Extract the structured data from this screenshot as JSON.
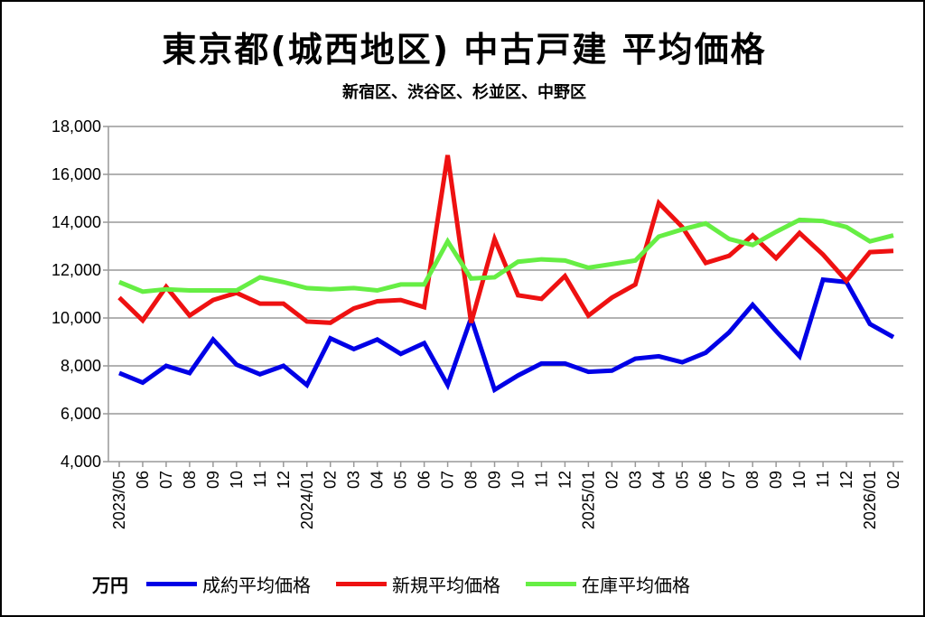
{
  "chart_data": {
    "type": "line",
    "title": "東京都(城西地区) 中古戸建 平均価格",
    "subtitle": "新宿区、渋谷区、杉並区、中野区",
    "ylabel": "万円",
    "ylim": [
      4000,
      18000
    ],
    "yticks": [
      "4,000",
      "6,000",
      "8,000",
      "10,000",
      "12,000",
      "14,000",
      "16,000",
      "18,000"
    ],
    "ytick_values": [
      4000,
      6000,
      8000,
      10000,
      12000,
      14000,
      16000,
      18000
    ],
    "grid": true,
    "legend_position": "bottom",
    "categories": [
      "2023/05",
      "06",
      "07",
      "08",
      "09",
      "10",
      "11",
      "12",
      "2024/01",
      "02",
      "03",
      "04",
      "05",
      "06",
      "07",
      "08",
      "09",
      "10",
      "11",
      "12",
      "2025/01",
      "02",
      "03",
      "04",
      "05",
      "06",
      "07",
      "08",
      "09",
      "10",
      "11",
      "12",
      "2026/01",
      "02"
    ],
    "series": [
      {
        "name": "成約平均価格",
        "color": "#0000e6",
        "values": [
          7700,
          7300,
          8000,
          7700,
          9100,
          8050,
          7650,
          8000,
          7200,
          9150,
          8700,
          9100,
          8500,
          8950,
          7200,
          10000,
          7000,
          7600,
          8100,
          8100,
          7750,
          7800,
          8300,
          8400,
          8150,
          8550,
          9400,
          10550,
          9450,
          8400,
          11600,
          11500,
          9750,
          9200
        ]
      },
      {
        "name": "新規平均価格",
        "color": "#ee1111",
        "values": [
          10850,
          9900,
          11300,
          10100,
          10750,
          11050,
          10600,
          10600,
          9850,
          9800,
          10400,
          10700,
          10750,
          10450,
          16800,
          9800,
          13300,
          10950,
          10800,
          11750,
          10100,
          10850,
          11400,
          14800,
          13800,
          12300,
          12600,
          13450,
          12500,
          13550,
          12650,
          11550,
          12750,
          12800
        ]
      },
      {
        "name": "在庫平均価格",
        "color": "#66ee44",
        "values": [
          11500,
          11100,
          11200,
          11150,
          11150,
          11150,
          11700,
          11500,
          11250,
          11200,
          11250,
          11150,
          11400,
          11400,
          13200,
          11650,
          11700,
          12350,
          12450,
          12400,
          12100,
          12250,
          12400,
          13400,
          13700,
          13950,
          13300,
          13050,
          13600,
          14100,
          14050,
          13800,
          13200,
          13450
        ]
      }
    ]
  }
}
